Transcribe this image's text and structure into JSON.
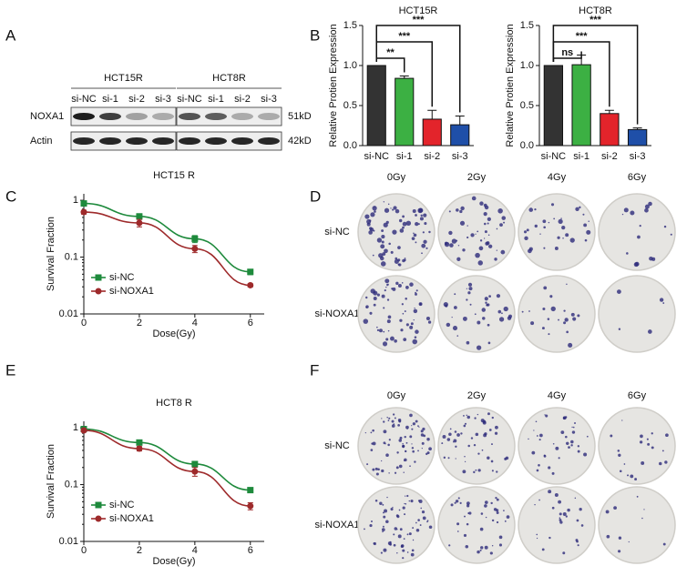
{
  "panels": [
    "A",
    "B",
    "C",
    "D",
    "E",
    "F"
  ],
  "blot": {
    "groups": [
      {
        "title": "HCT15R",
        "lanes": [
          "si-NC",
          "si-1",
          "si-2",
          "si-3"
        ]
      },
      {
        "title": "HCT8R",
        "lanes": [
          "si-NC",
          "si-1",
          "si-2",
          "si-3"
        ]
      }
    ],
    "rows": [
      "NOXA1",
      "Actin"
    ],
    "sizes": [
      "51kD",
      "42kD"
    ]
  },
  "chart_data": [
    {
      "type": "bar",
      "title": "HCT15R",
      "y_label": "Relative Protien Expression",
      "categories": [
        "si-NC",
        "si-1",
        "si-2",
        "si-3"
      ],
      "values": [
        1.0,
        0.84,
        0.33,
        0.26
      ],
      "errors": [
        0.0,
        0.03,
        0.11,
        0.11
      ],
      "colors": [
        "#333333",
        "#3cb043",
        "#e3242b",
        "#1f4fa8"
      ],
      "annotations": [
        "**",
        "***",
        "***"
      ],
      "ylim": [
        0,
        1.5
      ],
      "yticks": [
        {
          "value": 0,
          "label": "0.0"
        },
        0.5,
        {
          "value": 1,
          "label": "1.0"
        },
        1.5
      ]
    },
    {
      "type": "bar",
      "title": "HCT8R",
      "y_label": "Relative Protien Expression",
      "categories": [
        "si-NC",
        "si-1",
        "si-2",
        "si-3"
      ],
      "values": [
        1.0,
        1.01,
        0.4,
        0.2
      ],
      "errors": [
        0.0,
        0.12,
        0.04,
        0.02
      ],
      "colors": [
        "#333333",
        "#3cb043",
        "#e3242b",
        "#1f4fa8"
      ],
      "annotations": [
        "ns",
        "***",
        "***"
      ],
      "ylim": [
        0,
        1.5
      ],
      "yticks": [
        {
          "value": 0,
          "label": "0.0"
        },
        0.5,
        {
          "value": 1,
          "label": "1.0"
        },
        1.5
      ]
    },
    {
      "type": "line",
      "title": "HCT15 R",
      "x_label": "Dose(Gy)",
      "y_label": "Survival Fraction",
      "log_y": true,
      "legend": "lower left",
      "x": [
        0,
        2,
        4,
        6
      ],
      "xlim": [
        0,
        6.5
      ],
      "xticks": [
        0,
        2,
        4,
        6
      ],
      "ylim": [
        0.01,
        1.3
      ],
      "yticks": [
        0.01,
        0.1,
        1
      ],
      "series": [
        {
          "name": "si-NC",
          "color": "#1e8a3c",
          "marker": "square",
          "values": [
            0.88,
            0.52,
            0.21,
            0.055
          ],
          "errors": [
            0.05,
            0.06,
            0.03,
            0.006
          ]
        },
        {
          "name": "si-NOXA1",
          "color": "#9e2a2b",
          "marker": "circle",
          "values": [
            0.62,
            0.4,
            0.14,
            0.032
          ],
          "errors": [
            0.05,
            0.06,
            0.02,
            0.002
          ]
        }
      ]
    },
    {
      "type": "line",
      "title": "HCT8 R",
      "x_label": "Dose(Gy)",
      "y_label": "Survival Fraction",
      "log_y": true,
      "legend": "lower left",
      "x": [
        0,
        2,
        4,
        6
      ],
      "xlim": [
        0,
        6.5
      ],
      "xticks": [
        0,
        2,
        4,
        6
      ],
      "ylim": [
        0.01,
        1.3
      ],
      "yticks": [
        0.01,
        0.1,
        1
      ],
      "series": [
        {
          "name": "si-NC",
          "color": "#1e8a3c",
          "marker": "square",
          "values": [
            0.95,
            0.55,
            0.23,
            0.08
          ],
          "errors": [
            0.06,
            0.05,
            0.025,
            0.006
          ]
        },
        {
          "name": "si-NOXA1",
          "color": "#9e2a2b",
          "marker": "circle",
          "values": [
            0.9,
            0.43,
            0.17,
            0.042
          ],
          "errors": [
            0.06,
            0.04,
            0.03,
            0.006
          ]
        }
      ]
    }
  ],
  "plates": [
    {
      "doses": [
        "0Gy",
        "2Gy",
        "4Gy",
        "6Gy"
      ],
      "rows": [
        "si-NC",
        "si-NOXA1"
      ]
    },
    {
      "doses": [
        "0Gy",
        "2Gy",
        "4Gy",
        "6Gy"
      ],
      "rows": [
        "si-NC",
        "si-NOXA1"
      ]
    }
  ]
}
